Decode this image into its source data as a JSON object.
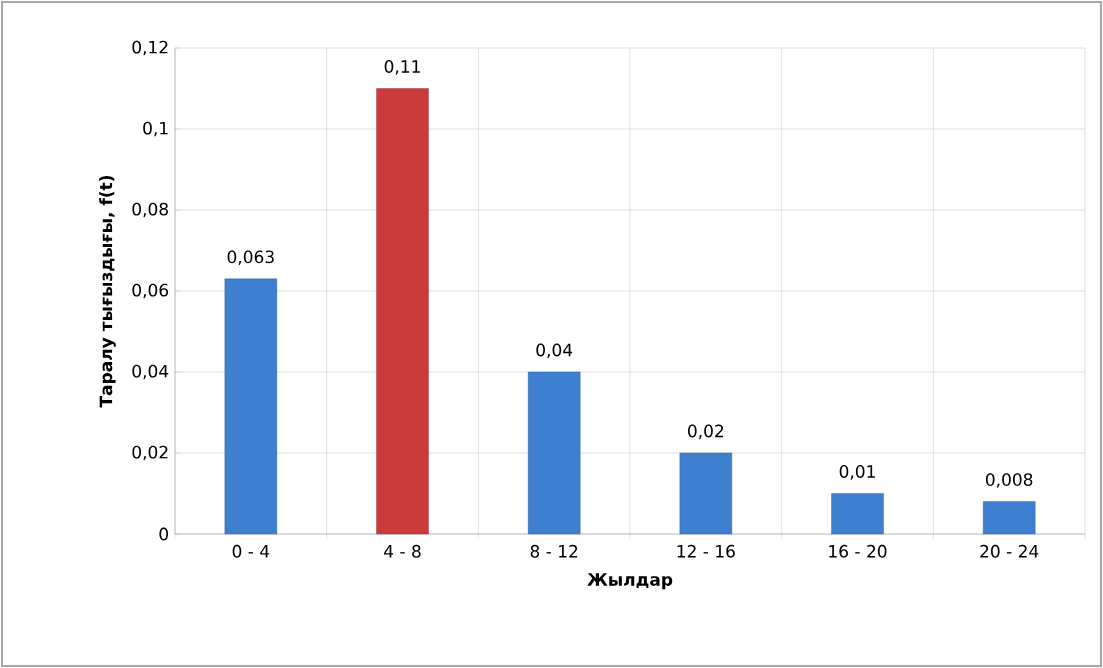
{
  "chart_data": {
    "type": "bar",
    "xlabel": "Жылдар",
    "ylabel": "Таралу тығыздығы, f(t)",
    "categories": [
      "0 - 4",
      "4 - 8",
      "8 - 12",
      "12 - 16",
      "16 - 20",
      "20 - 24"
    ],
    "values": [
      0.063,
      0.11,
      0.04,
      0.02,
      0.01,
      0.008
    ],
    "colors": [
      "#3f7fd0",
      "#cc3b3b",
      "#3f7fd0",
      "#3f7fd0",
      "#3f7fd0",
      "#3f7fd0"
    ],
    "value_labels": [
      "0,063",
      "0,11",
      "0,04",
      "0,02",
      "0,01",
      "0,008"
    ],
    "ylim": [
      0,
      0.12
    ],
    "yticks": [
      0,
      {
        "value": 0.02,
        "label": "0,02"
      },
      {
        "value": 0.04,
        "label": "0,04"
      },
      {
        "value": 0.06,
        "label": "0,06"
      },
      {
        "value": 0.08,
        "label": "0,08"
      },
      {
        "value": 0.1,
        "label": "0,1"
      },
      {
        "value": 0.12,
        "label": "0,12"
      }
    ],
    "grid": true
  }
}
